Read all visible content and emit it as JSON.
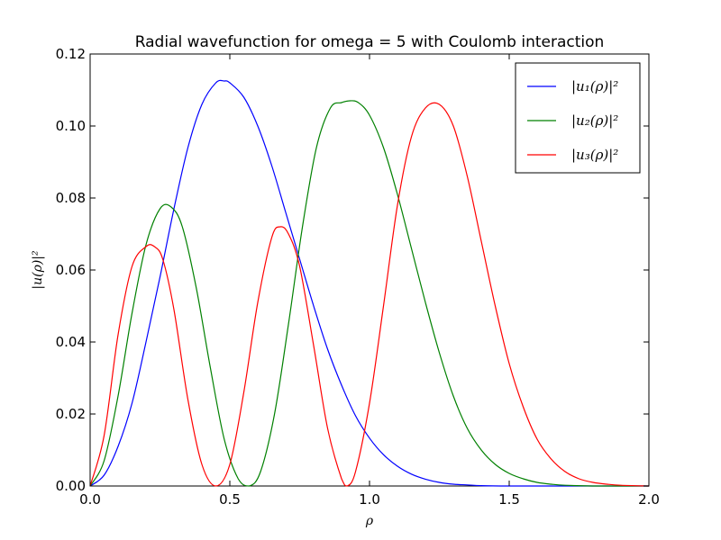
{
  "chart_data": {
    "type": "line",
    "title": "Radial wavefunction for omega = 5 with Coulomb interaction",
    "xlabel": "ρ",
    "ylabel": "|u(ρ)|²",
    "xlim": [
      0.0,
      2.0
    ],
    "ylim": [
      0.0,
      0.12
    ],
    "xticks": [
      "0.0",
      "0.5",
      "1.0",
      "1.5",
      "2.0"
    ],
    "yticks": [
      "0.00",
      "0.02",
      "0.04",
      "0.06",
      "0.08",
      "0.10",
      "0.12"
    ],
    "grid": false,
    "legend_position": "top-right",
    "series": [
      {
        "name": "|u₁(ρ)|²",
        "color": "#0000ff",
        "x": [
          0.0,
          0.05,
          0.1,
          0.15,
          0.2,
          0.25,
          0.3,
          0.35,
          0.4,
          0.45,
          0.48,
          0.5,
          0.55,
          0.6,
          0.65,
          0.7,
          0.75,
          0.8,
          0.85,
          0.9,
          0.95,
          1.0,
          1.05,
          1.1,
          1.15,
          1.2,
          1.25,
          1.3,
          1.35,
          1.4,
          1.5,
          1.6,
          1.7,
          1.8,
          1.9,
          2.0
        ],
        "y": [
          0.0,
          0.003,
          0.011,
          0.023,
          0.04,
          0.058,
          0.077,
          0.094,
          0.106,
          0.112,
          0.1125,
          0.112,
          0.108,
          0.1,
          0.089,
          0.076,
          0.063,
          0.05,
          0.038,
          0.028,
          0.0195,
          0.0133,
          0.0087,
          0.0055,
          0.0033,
          0.0019,
          0.001,
          0.0005,
          0.0003,
          0.0001,
          0.0,
          0.0,
          0.0,
          0.0,
          0.0,
          0.0
        ]
      },
      {
        "name": "|u₂(ρ)|²",
        "color": "#008000",
        "x": [
          0.0,
          0.05,
          0.1,
          0.15,
          0.2,
          0.25,
          0.29,
          0.33,
          0.38,
          0.43,
          0.48,
          0.53,
          0.57,
          0.61,
          0.66,
          0.71,
          0.76,
          0.81,
          0.86,
          0.9,
          0.93,
          0.96,
          1.0,
          1.05,
          1.1,
          1.15,
          1.2,
          1.25,
          1.3,
          1.35,
          1.4,
          1.45,
          1.5,
          1.55,
          1.6,
          1.65,
          1.7,
          1.8,
          1.9,
          2.0
        ],
        "y": [
          0.0,
          0.007,
          0.025,
          0.048,
          0.067,
          0.077,
          0.0775,
          0.072,
          0.055,
          0.033,
          0.013,
          0.002,
          0.0,
          0.004,
          0.02,
          0.045,
          0.072,
          0.094,
          0.105,
          0.1065,
          0.107,
          0.1065,
          0.103,
          0.094,
          0.081,
          0.066,
          0.051,
          0.037,
          0.025,
          0.016,
          0.01,
          0.006,
          0.0035,
          0.002,
          0.001,
          0.0005,
          0.0002,
          0.0,
          0.0,
          0.0
        ]
      },
      {
        "name": "|u₃(ρ)|²",
        "color": "#ff0000",
        "x": [
          0.0,
          0.05,
          0.1,
          0.15,
          0.2,
          0.23,
          0.26,
          0.3,
          0.35,
          0.4,
          0.45,
          0.5,
          0.55,
          0.6,
          0.65,
          0.68,
          0.71,
          0.75,
          0.8,
          0.85,
          0.9,
          0.92,
          0.95,
          1.0,
          1.05,
          1.1,
          1.15,
          1.2,
          1.25,
          1.3,
          1.35,
          1.4,
          1.45,
          1.5,
          1.55,
          1.6,
          1.65,
          1.7,
          1.75,
          1.8,
          1.85,
          1.9,
          2.0
        ],
        "y": [
          0.0,
          0.014,
          0.042,
          0.061,
          0.0665,
          0.0665,
          0.063,
          0.049,
          0.024,
          0.006,
          0.0,
          0.006,
          0.026,
          0.051,
          0.069,
          0.072,
          0.07,
          0.061,
          0.039,
          0.016,
          0.002,
          0.0,
          0.004,
          0.023,
          0.05,
          0.078,
          0.097,
          0.105,
          0.106,
          0.1,
          0.086,
          0.068,
          0.05,
          0.034,
          0.022,
          0.013,
          0.0075,
          0.004,
          0.002,
          0.001,
          0.0005,
          0.0002,
          0.0
        ]
      }
    ]
  }
}
